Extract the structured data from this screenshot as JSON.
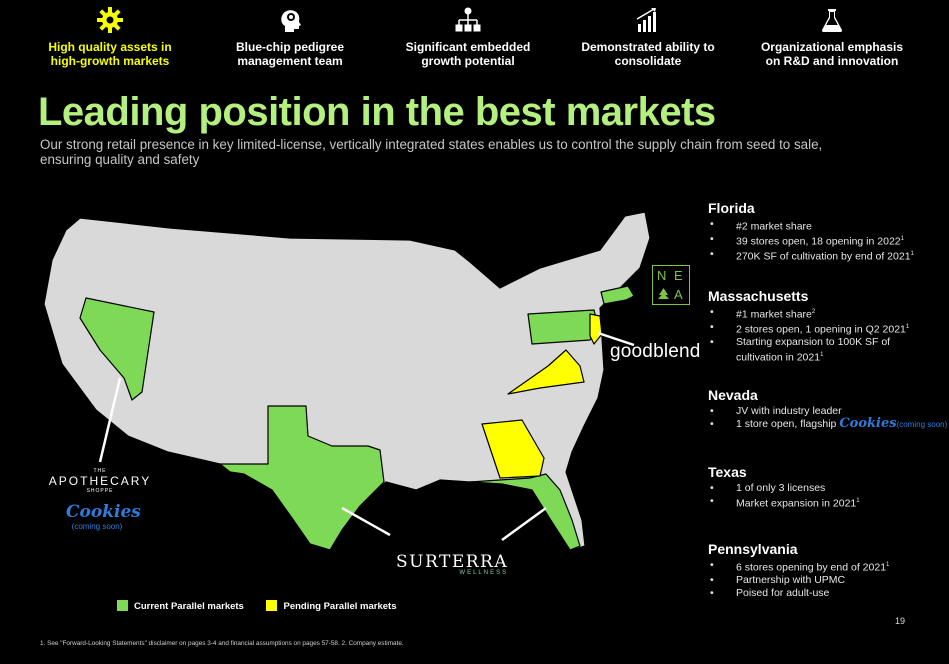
{
  "pillars": [
    {
      "icon": "gear-icon",
      "line1": "High quality assets in",
      "line2": "high-growth markets",
      "active": true
    },
    {
      "icon": "head-gear-icon",
      "line1": "Blue-chip pedigree",
      "line2": "management team",
      "active": false
    },
    {
      "icon": "hierarchy-icon",
      "line1": "Significant embedded",
      "line2": "growth potential",
      "active": false
    },
    {
      "icon": "bar-chart-icon",
      "line1": "Demonstrated ability to",
      "line2": "consolidate",
      "active": false
    },
    {
      "icon": "flask-icon",
      "line1": "Organizational emphasis",
      "line2": "on R&D and innovation",
      "active": false
    }
  ],
  "title": "Leading position in the best markets",
  "subtitle": "Our strong retail presence in key limited-license, vertically integrated states enables us to control the supply chain from seed to sale, ensuring quality and safety",
  "markets": [
    {
      "name": "Florida",
      "bullets": [
        "#2 market share",
        "39 stores open, 18 opening in 2022",
        "270K SF of cultivation by end of 2021"
      ],
      "sup": [
        "",
        "1",
        "1"
      ]
    },
    {
      "name": "Massachusetts",
      "bullets": [
        "#1 market share",
        "2 stores open, 1 opening in Q2 2021",
        "Starting expansion to 100K SF of cultivation in 2021"
      ],
      "sup": [
        "2",
        "1",
        "1"
      ]
    },
    {
      "name": "Nevada",
      "bullets": [
        "JV with industry leader",
        "1 store open, flagship"
      ],
      "sup": [
        "",
        ""
      ]
    },
    {
      "name": "Texas",
      "bullets": [
        "1 of only 3 licenses",
        "Market expansion in 2021"
      ],
      "sup": [
        "",
        "1"
      ]
    },
    {
      "name": "Pennsylvania",
      "bullets": [
        "6 stores opening by end of 2021",
        "Partnership with UPMC",
        "Poised for adult-use"
      ],
      "sup": [
        "1",
        "",
        ""
      ]
    }
  ],
  "nevada_brand": "Cookies",
  "nevada_brand_note": "(coming soon)",
  "brands": {
    "apothecary_top": "THE",
    "apothecary_name": "APOTHECARY",
    "apothecary_bottom": "SHOPPE",
    "cookies": "Cookies",
    "cookies_note": "(coming soon)",
    "goodblend": "goodblend",
    "surterra": "SURTERRA",
    "surterra_sub": "WELLNESS",
    "nea_letters": [
      "N",
      "E",
      "A"
    ]
  },
  "legend": [
    {
      "label": "Current Parallel markets",
      "color": "#7ed957"
    },
    {
      "label": "Pending Parallel markets",
      "color": "#ffff00"
    }
  ],
  "colors": {
    "current": "#7ed957",
    "pending": "#ffff00",
    "other_state": "#d9d9d9",
    "title": "#b4f07e",
    "accent": "#f6ff00"
  },
  "page_number": "19",
  "footnote": "1. See \"Forward-Looking Statements\" disclaimer on pages 3-4 and financial assumptions on pages 57-58. 2. Company estimate."
}
